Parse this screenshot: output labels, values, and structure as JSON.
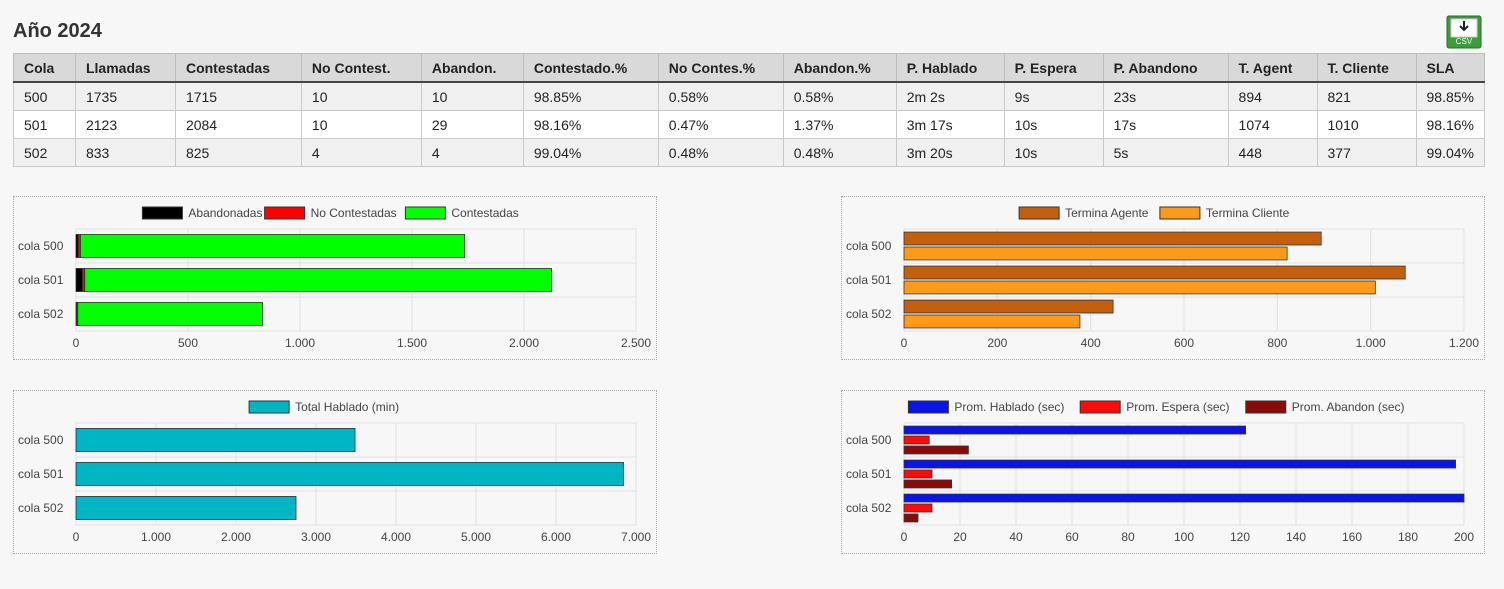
{
  "page": {
    "title": "Año 2024"
  },
  "csv_button": {
    "label": "CSV"
  },
  "table": {
    "columns": [
      "Cola",
      "Llamadas",
      "Contestadas",
      "No Contest.",
      "Abandon.",
      "Contestado.%",
      "No Contes.%",
      "Abandon.%",
      "P. Hablado",
      "P. Espera",
      "P. Abandono",
      "T. Agent",
      "T. Cliente",
      "SLA"
    ],
    "rows": [
      [
        "500",
        "1735",
        "1715",
        "10",
        "10",
        "98.85%",
        "0.58%",
        "0.58%",
        "2m 2s",
        "9s",
        "23s",
        "894",
        "821",
        "98.85%"
      ],
      [
        "501",
        "2123",
        "2084",
        "10",
        "29",
        "98.16%",
        "0.47%",
        "1.37%",
        "3m 17s",
        "10s",
        "17s",
        "1074",
        "1010",
        "98.16%"
      ],
      [
        "502",
        "833",
        "825",
        "4",
        "4",
        "99.04%",
        "0.48%",
        "0.48%",
        "3m 20s",
        "10s",
        "5s",
        "448",
        "377",
        "99.04%"
      ]
    ]
  },
  "chart_data": [
    {
      "type": "bar",
      "orientation": "horizontal",
      "stacked": true,
      "categories": [
        "cola 500",
        "cola 501",
        "cola 502"
      ],
      "series": [
        {
          "name": "Abandonadas",
          "values": [
            10,
            29,
            4
          ],
          "color": "#000000"
        },
        {
          "name": "No Contestadas",
          "values": [
            10,
            10,
            4
          ],
          "color": "#ff0000"
        },
        {
          "name": "Contestadas",
          "values": [
            1715,
            2084,
            825
          ],
          "color": "#00ff00"
        }
      ],
      "xlim": [
        0,
        2500
      ],
      "xticks": [
        0,
        500,
        1000,
        1500,
        2000,
        2500
      ],
      "xtick_labels": [
        "0",
        "500",
        "1.000",
        "1.500",
        "2.000",
        "2.500"
      ],
      "legend": "top-center",
      "grid": true
    },
    {
      "type": "bar",
      "orientation": "horizontal",
      "stacked": false,
      "categories": [
        "cola 500",
        "cola 501",
        "cola 502"
      ],
      "series": [
        {
          "name": "Termina Agente",
          "values": [
            894,
            1074,
            448
          ],
          "color": "#c45f0e"
        },
        {
          "name": "Termina Cliente",
          "values": [
            821,
            1010,
            377
          ],
          "color": "#ff9a18"
        }
      ],
      "xlim": [
        0,
        1200
      ],
      "xticks": [
        0,
        200,
        400,
        600,
        800,
        1000,
        1200
      ],
      "xtick_labels": [
        "0",
        "200",
        "400",
        "600",
        "800",
        "1.000",
        "1.200"
      ],
      "legend": "top-center",
      "grid": true
    },
    {
      "type": "bar",
      "orientation": "horizontal",
      "stacked": false,
      "categories": [
        "cola 500",
        "cola 501",
        "cola 502"
      ],
      "series": [
        {
          "name": "Total Hablado (min)",
          "values": [
            3488,
            6844,
            2750
          ],
          "color": "#00b5c4"
        }
      ],
      "xlim": [
        0,
        7000
      ],
      "xticks": [
        0,
        1000,
        2000,
        3000,
        4000,
        5000,
        6000,
        7000
      ],
      "xtick_labels": [
        "0",
        "1.000",
        "2.000",
        "3.000",
        "4.000",
        "5.000",
        "6.000",
        "7.000"
      ],
      "legend": "top-center",
      "grid": true
    },
    {
      "type": "bar",
      "orientation": "horizontal",
      "stacked": false,
      "categories": [
        "cola 500",
        "cola 501",
        "cola 502"
      ],
      "series": [
        {
          "name": "Prom. Hablado (sec)",
          "values": [
            122,
            197,
            200
          ],
          "color": "#0a14e6"
        },
        {
          "name": "Prom. Espera (sec)",
          "values": [
            9,
            10,
            10
          ],
          "color": "#ff0a0a"
        },
        {
          "name": "Prom. Abandon (sec)",
          "values": [
            23,
            17,
            5
          ],
          "color": "#8a0a0a"
        }
      ],
      "xlim": [
        0,
        200
      ],
      "xticks": [
        0,
        20,
        40,
        60,
        80,
        100,
        120,
        140,
        160,
        180,
        200
      ],
      "xtick_labels": [
        "0",
        "20",
        "40",
        "60",
        "80",
        "100",
        "120",
        "140",
        "160",
        "180",
        "200"
      ],
      "legend": "top-center",
      "grid": true
    }
  ]
}
